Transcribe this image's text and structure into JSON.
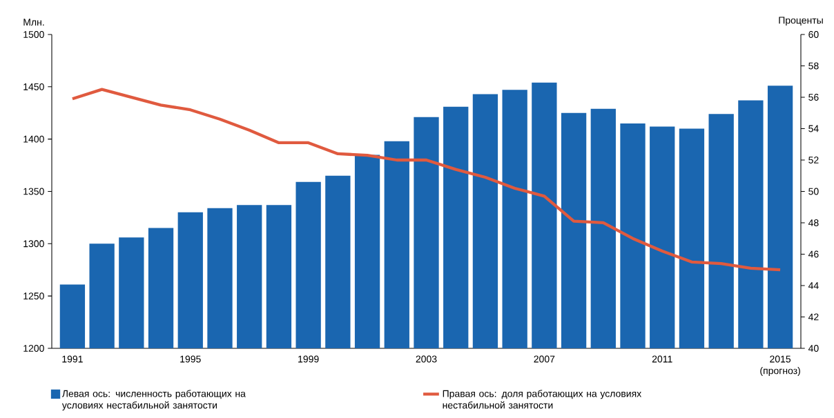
{
  "chart_data": {
    "type": "bar",
    "ylabel": "Млн.",
    "y2label": "Проценты",
    "categories": [
      "1991",
      null,
      null,
      null,
      "1995",
      null,
      null,
      null,
      "1999",
      null,
      null,
      null,
      "2003",
      null,
      null,
      null,
      "2007",
      null,
      null,
      null,
      "2011",
      null,
      null,
      null,
      "2015 (прогноз)"
    ],
    "series": [
      {
        "name": "Левая ось:  численность работающих на условиях нестабильной занятости",
        "type": "bar",
        "color": "#1a66b0",
        "values": [
          1261,
          1300,
          1306,
          1315,
          1330,
          1334,
          1337,
          1337,
          1359,
          1365,
          1385,
          1398,
          1421,
          1431,
          1443,
          1447,
          1454,
          1425,
          1429,
          1415,
          1412,
          1410,
          1424,
          1437,
          1451
        ]
      },
      {
        "name": "Правая ось:  доля работающих на условиях нестабильной занятости",
        "type": "line",
        "axis": "y2",
        "color": "#e05a3f",
        "values": [
          55.9,
          56.5,
          56.0,
          55.5,
          55.2,
          54.6,
          53.9,
          53.1,
          53.1,
          52.4,
          52.3,
          52.0,
          52.0,
          51.4,
          50.9,
          50.2,
          49.7,
          48.1,
          48.0,
          47.0,
          46.2,
          45.5,
          45.4,
          45.1,
          45.0
        ]
      }
    ],
    "ylim": [
      1200,
      1500
    ],
    "yticks": [
      1200,
      1250,
      1300,
      1350,
      1400,
      1450,
      1500
    ],
    "y2lim": [
      40,
      60
    ],
    "y2ticks": [
      40,
      42,
      44,
      46,
      48,
      50,
      52,
      54,
      56,
      58,
      60
    ],
    "legend": "bottom",
    "grid": false,
    "marker": "none",
    "line_style": "solid"
  }
}
